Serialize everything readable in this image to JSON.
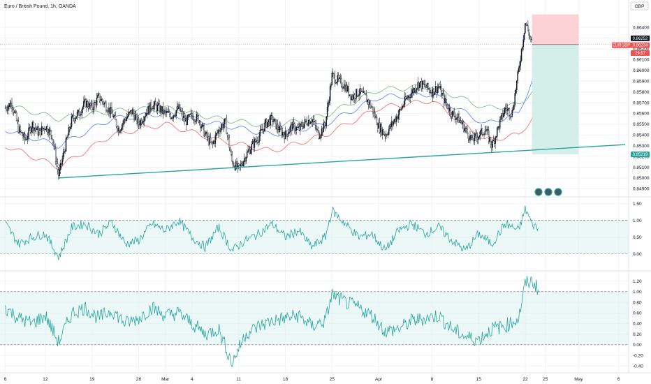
{
  "header": {
    "symbol_title": "Euro / British Pound, 1h, OANDA",
    "currency": "GBP"
  },
  "colors": {
    "up": "#26a69a",
    "down": "#ef5350",
    "candle": "#131722",
    "ma_green": "#4caf50",
    "ma_blue": "#2962ff",
    "ma_red": "#f44336",
    "trendline": "#26a69a",
    "risk_zone": "#fbc7cc",
    "reward_zone": "#cdebe6",
    "osc_line": "#26a69a",
    "osc_band": "#e0f2f1"
  },
  "chart_data": [
    {
      "type": "candlestick",
      "name": "EURGBP",
      "ylim": [
        0.8485,
        0.8655
      ],
      "y_ticks": [
        "0.84900",
        "0.85000",
        "0.85100",
        "0.85200",
        "0.85300",
        "0.85400",
        "0.85500",
        "0.85600",
        "0.85700",
        "0.85800",
        "0.85900",
        "0.86000",
        "0.86100",
        "0.86200",
        "0.86300",
        "0.86400"
      ],
      "y_tick_values": [
        0.849,
        0.85,
        0.851,
        0.852,
        0.853,
        0.854,
        0.855,
        0.856,
        0.857,
        0.858,
        0.859,
        0.86,
        0.861,
        0.862,
        0.863,
        0.864
      ],
      "x_ticks": [
        "6",
        "12",
        "19",
        "26",
        "Mar",
        "4",
        "11",
        "18",
        "25",
        "Apr",
        "8",
        "15",
        "22",
        "25",
        "May",
        "6"
      ],
      "x_tick_days": [
        6,
        12,
        19,
        26,
        30,
        34,
        41,
        48,
        55,
        62,
        70,
        77,
        84,
        87,
        92,
        98
      ],
      "price_path": [
        [
          6,
          0.8565
        ],
        [
          7,
          0.857
        ],
        [
          8,
          0.8545
        ],
        [
          9,
          0.8535
        ],
        [
          10,
          0.855
        ],
        [
          11,
          0.8542
        ],
        [
          12,
          0.8548
        ],
        [
          13,
          0.854
        ],
        [
          14,
          0.8502
        ],
        [
          15,
          0.853
        ],
        [
          16,
          0.8555
        ],
        [
          17,
          0.856
        ],
        [
          18,
          0.857
        ],
        [
          19,
          0.8565
        ],
        [
          20,
          0.8575
        ],
        [
          21,
          0.8568
        ],
        [
          22,
          0.856
        ],
        [
          23,
          0.8545
        ],
        [
          24,
          0.8555
        ],
        [
          25,
          0.8562
        ],
        [
          26,
          0.855
        ],
        [
          27,
          0.856
        ],
        [
          28,
          0.8568
        ],
        [
          29,
          0.8565
        ],
        [
          30,
          0.856
        ],
        [
          31,
          0.8558
        ],
        [
          32,
          0.8565
        ],
        [
          33,
          0.8552
        ],
        [
          34,
          0.8558
        ],
        [
          35,
          0.8555
        ],
        [
          36,
          0.854
        ],
        [
          37,
          0.853
        ],
        [
          38,
          0.8545
        ],
        [
          39,
          0.8552
        ],
        [
          40,
          0.8515
        ],
        [
          41,
          0.8508
        ],
        [
          42,
          0.852
        ],
        [
          43,
          0.853
        ],
        [
          44,
          0.8538
        ],
        [
          45,
          0.855
        ],
        [
          46,
          0.8555
        ],
        [
          47,
          0.8545
        ],
        [
          48,
          0.854
        ],
        [
          49,
          0.8548
        ],
        [
          50,
          0.8545
        ],
        [
          51,
          0.8552
        ],
        [
          52,
          0.8555
        ],
        [
          53,
          0.854
        ],
        [
          54,
          0.855
        ],
        [
          55,
          0.8595
        ],
        [
          56,
          0.859
        ],
        [
          57,
          0.8585
        ],
        [
          58,
          0.8575
        ],
        [
          59,
          0.858
        ],
        [
          60,
          0.8575
        ],
        [
          61,
          0.8565
        ],
        [
          62,
          0.8548
        ],
        [
          63,
          0.854
        ],
        [
          64,
          0.855
        ],
        [
          65,
          0.856
        ],
        [
          66,
          0.8572
        ],
        [
          67,
          0.858
        ],
        [
          68,
          0.8588
        ],
        [
          69,
          0.8585
        ],
        [
          70,
          0.858
        ],
        [
          71,
          0.8585
        ],
        [
          72,
          0.857
        ],
        [
          73,
          0.856
        ],
        [
          74,
          0.8555
        ],
        [
          75,
          0.8545
        ],
        [
          76,
          0.8535
        ],
        [
          77,
          0.854
        ],
        [
          78,
          0.8545
        ],
        [
          79,
          0.853
        ],
        [
          80,
          0.8548
        ],
        [
          81,
          0.8565
        ],
        [
          82,
          0.856
        ],
        [
          83,
          0.86
        ],
        [
          84,
          0.8645
        ],
        [
          85,
          0.8625
        ]
      ],
      "moving_averages": [
        {
          "color": "green",
          "path": [
            [
              6,
              0.8568
            ],
            [
              14,
              0.8555
            ],
            [
              22,
              0.8562
            ],
            [
              30,
              0.8565
            ],
            [
              38,
              0.8555
            ],
            [
              46,
              0.8548
            ],
            [
              54,
              0.8558
            ],
            [
              62,
              0.8582
            ],
            [
              70,
              0.8585
            ],
            [
              78,
              0.8565
            ],
            [
              83,
              0.8568
            ],
            [
              85,
              0.858
            ]
          ]
        },
        {
          "color": "blue",
          "path": [
            [
              6,
              0.8545
            ],
            [
              14,
              0.853
            ],
            [
              22,
              0.8555
            ],
            [
              30,
              0.856
            ],
            [
              38,
              0.855
            ],
            [
              46,
              0.854
            ],
            [
              54,
              0.855
            ],
            [
              62,
              0.8575
            ],
            [
              70,
              0.8578
            ],
            [
              78,
              0.855
            ],
            [
              83,
              0.856
            ],
            [
              85,
              0.859
            ]
          ]
        },
        {
          "color": "red",
          "path": [
            [
              6,
              0.853
            ],
            [
              14,
              0.851
            ],
            [
              22,
              0.854
            ],
            [
              30,
              0.855
            ],
            [
              38,
              0.8535
            ],
            [
              46,
              0.8525
            ],
            [
              54,
              0.854
            ],
            [
              62,
              0.8565
            ],
            [
              70,
              0.8572
            ],
            [
              78,
              0.8535
            ],
            [
              83,
              0.854
            ],
            [
              85,
              0.8555
            ]
          ]
        }
      ],
      "trendline": [
        [
          14,
          0.85
        ],
        [
          99,
          0.8531
        ]
      ],
      "position": {
        "entry": 0.8624,
        "stop": 0.8652,
        "target": 0.8522,
        "start_day": 85,
        "end_day": 92
      },
      "price_labels": [
        {
          "text": "0.86252",
          "value": 0.86252,
          "style": "dark"
        },
        {
          "text": "EURGBP",
          "value": 0.86234,
          "style": "red-tag"
        },
        {
          "text": "0.86234",
          "value": 0.86234,
          "style": "red"
        },
        {
          "text": "29:57",
          "value": 0.862,
          "style": "red"
        },
        {
          "text": "0.85219",
          "value": 0.85219,
          "style": "green"
        }
      ]
    },
    {
      "type": "line",
      "name": "oscillator-1",
      "ylim": [
        -0.3,
        1.6
      ],
      "y_ticks": [
        "0.00",
        "0.50",
        "1.00",
        "1.50"
      ],
      "y_tick_values": [
        0,
        0.5,
        1.0,
        1.5
      ],
      "band": [
        0,
        1
      ],
      "path": [
        [
          6,
          0.9
        ],
        [
          8,
          0.3
        ],
        [
          10,
          0.5
        ],
        [
          12,
          0.6
        ],
        [
          14,
          -0.1
        ],
        [
          16,
          0.8
        ],
        [
          18,
          0.9
        ],
        [
          20,
          0.6
        ],
        [
          22,
          0.95
        ],
        [
          24,
          0.3
        ],
        [
          26,
          0.4
        ],
        [
          28,
          0.9
        ],
        [
          30,
          0.7
        ],
        [
          32,
          1.0
        ],
        [
          34,
          0.5
        ],
        [
          36,
          0.2
        ],
        [
          38,
          0.8
        ],
        [
          40,
          0.1
        ],
        [
          42,
          0.4
        ],
        [
          44,
          0.6
        ],
        [
          46,
          0.9
        ],
        [
          48,
          0.5
        ],
        [
          50,
          0.7
        ],
        [
          52,
          0.2
        ],
        [
          54,
          0.5
        ],
        [
          55,
          1.3
        ],
        [
          57,
          0.9
        ],
        [
          59,
          0.5
        ],
        [
          61,
          0.6
        ],
        [
          63,
          0.1
        ],
        [
          65,
          0.7
        ],
        [
          67,
          0.9
        ],
        [
          69,
          0.6
        ],
        [
          71,
          0.8
        ],
        [
          73,
          0.4
        ],
        [
          75,
          0.1
        ],
        [
          77,
          0.6
        ],
        [
          79,
          0.3
        ],
        [
          81,
          0.9
        ],
        [
          83,
          0.7
        ],
        [
          84,
          1.35
        ],
        [
          85,
          0.9
        ],
        [
          86,
          0.75
        ]
      ]
    },
    {
      "type": "line",
      "name": "oscillator-2",
      "ylim": [
        -0.45,
        1.3
      ],
      "y_ticks": [
        "-0.40",
        "-0.20",
        "0.00",
        "0.20",
        "0.40",
        "0.60",
        "0.80",
        "1.00",
        "1.20"
      ],
      "y_tick_values": [
        -0.4,
        -0.2,
        0,
        0.2,
        0.4,
        0.6,
        0.8,
        1.0,
        1.2
      ],
      "band": [
        0,
        1
      ],
      "path": [
        [
          6,
          0.7
        ],
        [
          8,
          0.5
        ],
        [
          10,
          0.4
        ],
        [
          12,
          0.55
        ],
        [
          14,
          0.05
        ],
        [
          16,
          0.6
        ],
        [
          18,
          0.7
        ],
        [
          20,
          0.5
        ],
        [
          22,
          0.65
        ],
        [
          24,
          0.4
        ],
        [
          26,
          0.5
        ],
        [
          28,
          0.7
        ],
        [
          30,
          0.55
        ],
        [
          32,
          0.6
        ],
        [
          34,
          0.4
        ],
        [
          36,
          0.2
        ],
        [
          38,
          0.3
        ],
        [
          40,
          -0.35
        ],
        [
          42,
          0.2
        ],
        [
          44,
          0.35
        ],
        [
          46,
          0.45
        ],
        [
          48,
          0.5
        ],
        [
          50,
          0.55
        ],
        [
          52,
          0.35
        ],
        [
          54,
          0.45
        ],
        [
          55,
          0.95
        ],
        [
          57,
          0.8
        ],
        [
          59,
          0.7
        ],
        [
          61,
          0.55
        ],
        [
          63,
          0.25
        ],
        [
          65,
          0.3
        ],
        [
          67,
          0.45
        ],
        [
          69,
          0.5
        ],
        [
          71,
          0.55
        ],
        [
          73,
          0.3
        ],
        [
          75,
          0.15
        ],
        [
          77,
          0.1
        ],
        [
          79,
          0.3
        ],
        [
          81,
          0.35
        ],
        [
          83,
          0.5
        ],
        [
          84,
          1.15
        ],
        [
          85,
          1.2
        ],
        [
          86,
          1.05
        ]
      ]
    }
  ],
  "toolbar": {
    "dots": [
      "circle-1",
      "circle-2",
      "circle-3"
    ]
  }
}
